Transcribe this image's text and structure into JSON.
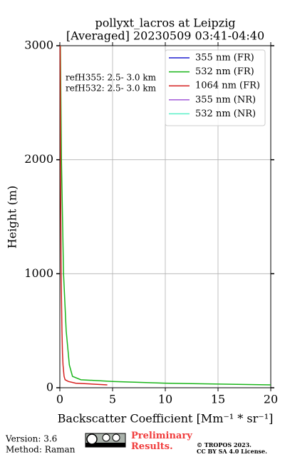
{
  "chart_data": {
    "type": "line",
    "orientation": "vertical-profile",
    "title": "pollyxt_lacros at Leipzig",
    "subtitle": "[Averaged] 20230509 03:41-04:40",
    "xlabel": "Backscatter Coefficient [Mm⁻¹ * sr⁻¹]",
    "ylabel": "Height (m)",
    "y": [
      25,
      40,
      55,
      70,
      100,
      200,
      300,
      500,
      1000,
      2000,
      3000
    ],
    "series": [
      {
        "name": "355 nm (FR)",
        "color": "#1f1fd0",
        "values": [
          null,
          null,
          null,
          null,
          null,
          null,
          null,
          null,
          null,
          null,
          null
        ]
      },
      {
        "name": "532 nm (FR)",
        "color": "#1ab51a",
        "values": [
          20,
          10,
          5,
          2,
          1.2,
          0.9,
          0.8,
          0.6,
          0.35,
          0.15,
          0.05
        ]
      },
      {
        "name": "1064 nm (FR)",
        "color": "#d62020",
        "values": [
          4.5,
          1.5,
          0.8,
          0.5,
          0.4,
          0.3,
          0.25,
          0.2,
          0.12,
          0.06,
          0.03
        ]
      },
      {
        "name": "355 nm (NR)",
        "color": "#a35bd8",
        "values": [
          null,
          null,
          null,
          null,
          null,
          null,
          null,
          null,
          null,
          null,
          null
        ]
      },
      {
        "name": "532 nm (NR)",
        "color": "#5af0c8",
        "values": [
          null,
          null,
          null,
          null,
          null,
          null,
          null,
          null,
          null,
          null,
          null
        ]
      }
    ],
    "xlim": [
      0,
      20
    ],
    "xticks": [
      0,
      5,
      10,
      15,
      20
    ],
    "ylim": [
      0,
      3000
    ],
    "yticks": [
      0,
      1000,
      2000,
      3000
    ],
    "grid": true,
    "legend": "upper right",
    "annotations": [
      "refH355:  2.5- 3.0 km",
      "refH532:  2.5- 3.0 km"
    ]
  },
  "footer": {
    "version": "Version: 3.6",
    "method": "Method: Raman",
    "status": "Preliminary Results.",
    "copyright": "© TROPOS 2023.",
    "license": "CC BY SA 4.0 License."
  }
}
